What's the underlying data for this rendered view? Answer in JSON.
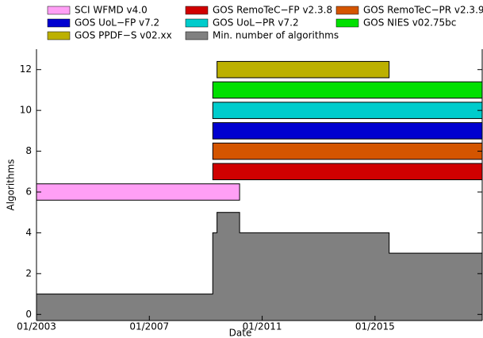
{
  "chart_data": {
    "type": "timeline",
    "x_label": "Date",
    "y_label": "Algorithms",
    "xlim": [
      2003,
      2018.8
    ],
    "ylim": [
      -0.3,
      13
    ],
    "xticks": [
      {
        "value": 2003,
        "label": "01/2003"
      },
      {
        "value": 2007,
        "label": "01/2007"
      },
      {
        "value": 2011,
        "label": "01/2011"
      },
      {
        "value": 2015,
        "label": "01/2015"
      }
    ],
    "yticks": [
      0,
      2,
      4,
      6,
      8,
      10,
      12
    ],
    "series": [
      {
        "name": "SCI WFMD v4.0",
        "color": "#ff9ff5",
        "level": 6,
        "start": 2003,
        "end": 2010.2
      },
      {
        "name": "GOS RemoTeC−FP v2.3.8",
        "color": "#d00000",
        "level": 7,
        "start": 2009.25,
        "end": 2018.8
      },
      {
        "name": "GOS RemoTeC−PR v2.3.9",
        "color": "#d45500",
        "level": 8,
        "start": 2009.25,
        "end": 2018.8
      },
      {
        "name": "GOS UoL−FP v7.2",
        "color": "#0000d0",
        "level": 9,
        "start": 2009.25,
        "end": 2018.8
      },
      {
        "name": "GOS UoL−PR v7.2",
        "color": "#00cccc",
        "level": 10,
        "start": 2009.25,
        "end": 2018.8
      },
      {
        "name": "GOS NIES v02.75bc",
        "color": "#00e000",
        "level": 11,
        "start": 2009.25,
        "end": 2018.8
      },
      {
        "name": "GOS PPDF−S v02.xx",
        "color": "#bcb000",
        "level": 12,
        "start": 2009.4,
        "end": 2015.5
      }
    ],
    "area": {
      "name": "Min. number of algorithms",
      "color": "#808080",
      "bins": [
        2003,
        2009.25,
        2009.4,
        2010.2,
        2015.5,
        2018.8
      ],
      "values": [
        1,
        4,
        5,
        4,
        3
      ]
    }
  }
}
